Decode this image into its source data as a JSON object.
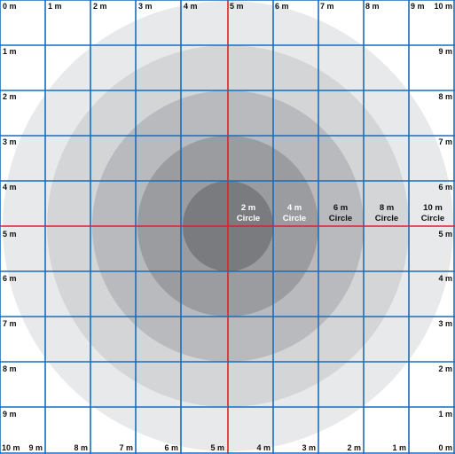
{
  "grid": {
    "top_labels": [
      "0 m",
      "1 m",
      "2 m",
      "3 m",
      "4 m",
      "5 m",
      "6 m",
      "7 m",
      "8 m",
      "9 m",
      "10 m"
    ],
    "left_labels": [
      "1 m",
      "2 m",
      "3 m",
      "4 m",
      "5 m",
      "6 m",
      "7 m",
      "8 m",
      "9 m"
    ],
    "right_labels": [
      "9 m",
      "8 m",
      "7 m",
      "6 m",
      "5 m",
      "4 m",
      "3 m",
      "2 m",
      "1 m"
    ],
    "bottom_labels": [
      "10 m",
      "9 m",
      "8 m",
      "7 m",
      "6 m",
      "5 m",
      "4 m",
      "3 m",
      "2 m",
      "1 m",
      "0 m"
    ]
  },
  "circles": [
    {
      "size": "2 m",
      "word": "Circle",
      "diameter_m": 2,
      "fill": "#797b7e",
      "label_color": "#ffffff"
    },
    {
      "size": "4 m",
      "word": "Circle",
      "diameter_m": 4,
      "fill": "#9a9c9f",
      "label_color": "#ffffff"
    },
    {
      "size": "6 m",
      "word": "Circle",
      "diameter_m": 6,
      "fill": "#b8babd",
      "label_color": "#111111"
    },
    {
      "size": "8 m",
      "word": "Circle",
      "diameter_m": 8,
      "fill": "#d3d5d7",
      "label_color": "#111111"
    },
    {
      "size": "10 m",
      "word": "Circle",
      "diameter_m": 10,
      "fill": "#e8e9ea",
      "label_color": "#111111"
    }
  ],
  "colors": {
    "grid_line": "#1a6dbb",
    "center_line": "#e0202a",
    "background": "#ffffff"
  }
}
